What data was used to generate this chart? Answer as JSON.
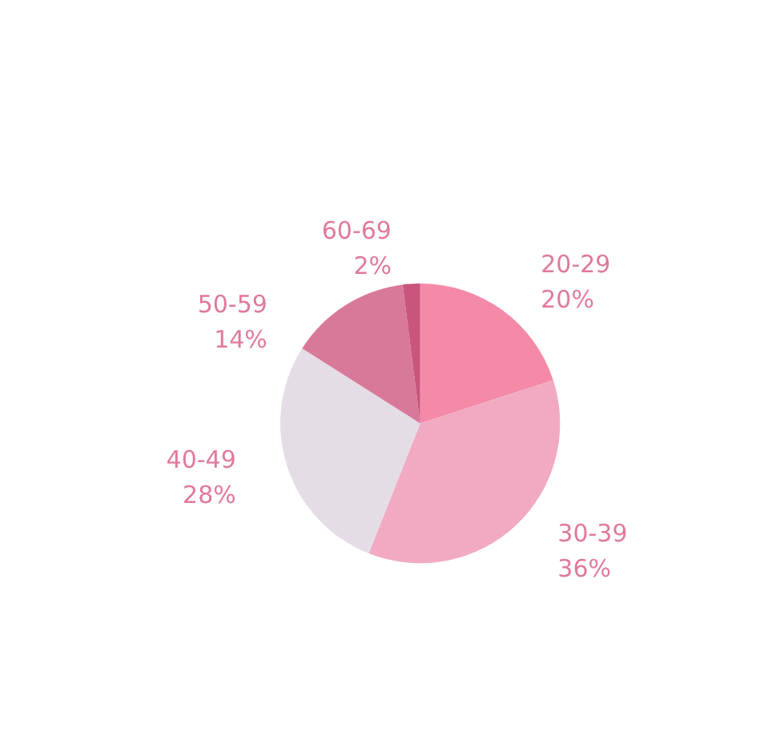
{
  "chart_data": {
    "type": "pie",
    "categories": [
      "20-29",
      "30-39",
      "40-49",
      "50-59",
      "60-69"
    ],
    "values": [
      20,
      36,
      28,
      14,
      2
    ],
    "colors": [
      "#f48aa8",
      "#f2aac3",
      "#e4dde6",
      "#d8799a",
      "#c9557f"
    ],
    "value_labels": [
      "20%",
      "36%",
      "28%",
      "14%",
      "2%"
    ],
    "legend": false
  }
}
